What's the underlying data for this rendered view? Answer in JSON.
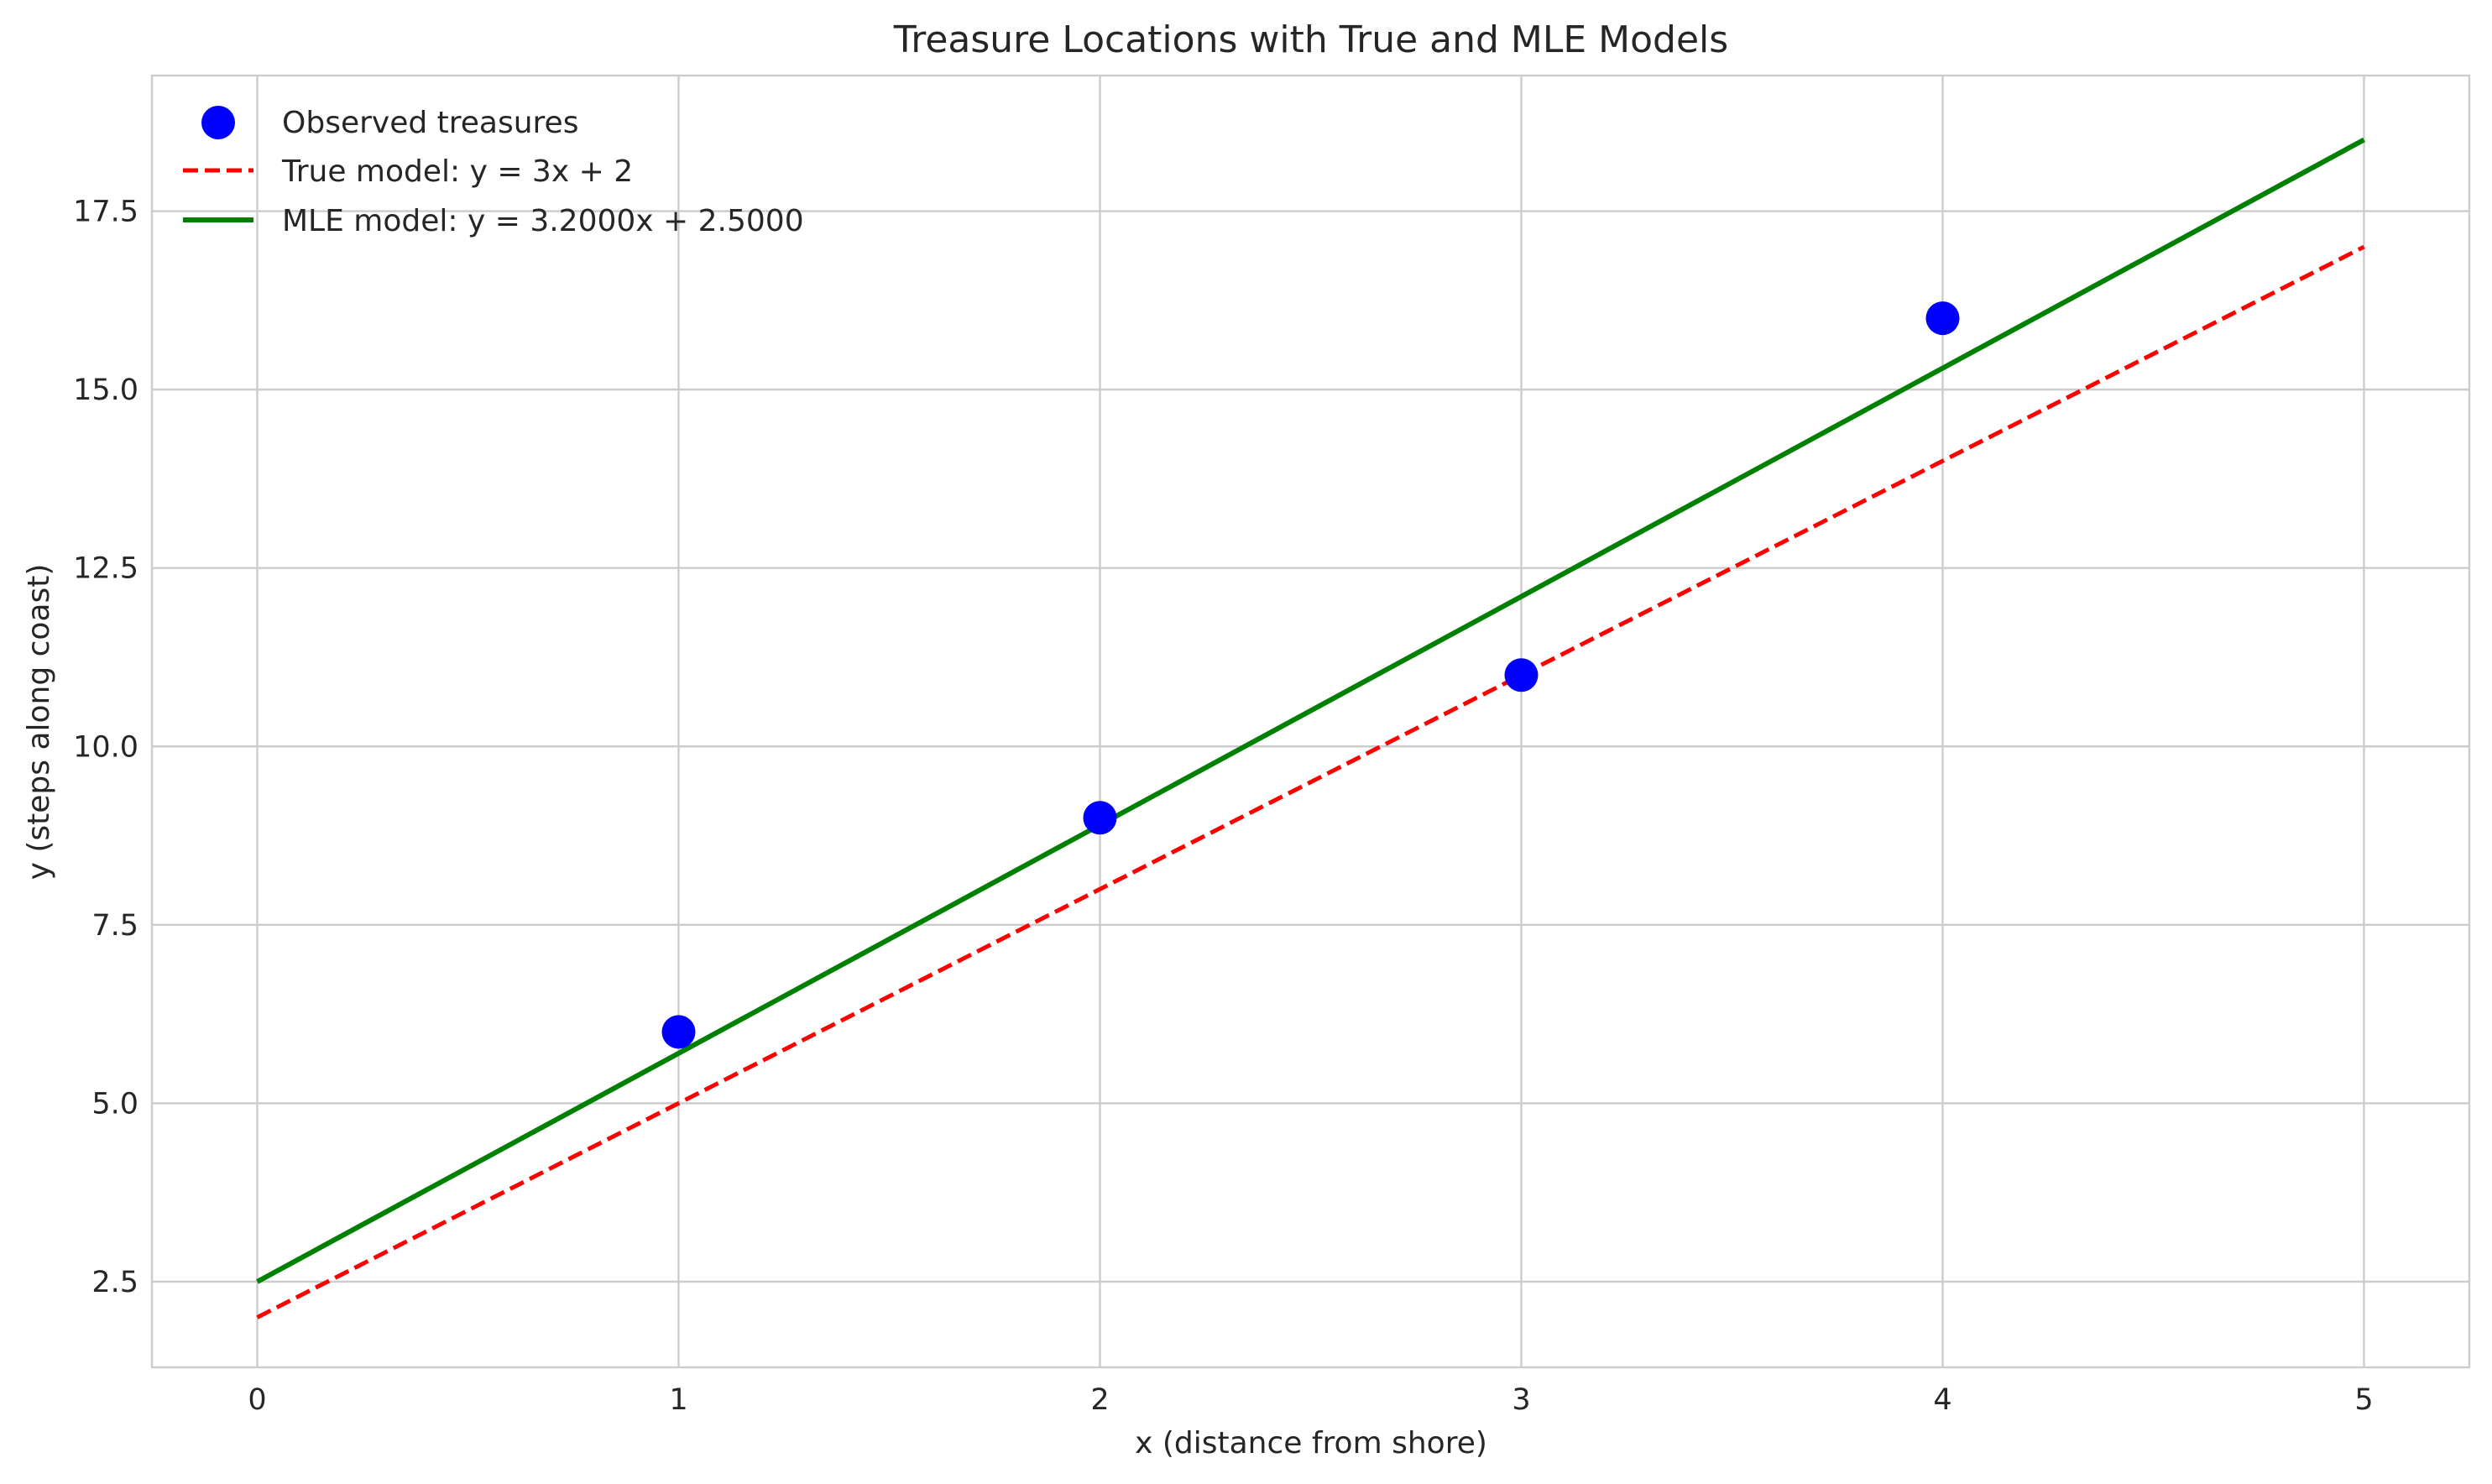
{
  "chart_data": {
    "type": "scatter",
    "title": "Treasure Locations with True and MLE Models",
    "xlabel": "x (distance from shore)",
    "ylabel": "y (steps along coast)",
    "xlim": [
      -0.25,
      5.25
    ],
    "ylim": [
      1.3,
      19.4
    ],
    "xticks": [
      0,
      1,
      2,
      3,
      4,
      5
    ],
    "xtick_labels": [
      "0",
      "1",
      "2",
      "3",
      "4",
      "5"
    ],
    "yticks": [
      2.5,
      5.0,
      7.5,
      10.0,
      12.5,
      15.0,
      17.5
    ],
    "ytick_labels": [
      "2.5",
      "5.0",
      "7.5",
      "10.0",
      "12.5",
      "15.0",
      "17.5"
    ],
    "grid": true,
    "legend_position": "top-left",
    "series": [
      {
        "name": "Observed treasures",
        "kind": "scatter",
        "color": "#0000ff",
        "x": [
          1,
          2,
          3,
          4
        ],
        "y": [
          6,
          9,
          11,
          16
        ]
      },
      {
        "name": "True model: y = 3x + 2",
        "kind": "line",
        "style": "dashed",
        "color": "#ff0000",
        "x": [
          0,
          5
        ],
        "y": [
          2,
          17
        ]
      },
      {
        "name": "MLE model: y = 3.2000x + 2.5000",
        "kind": "line",
        "style": "solid",
        "color": "#008000",
        "x": [
          0,
          5
        ],
        "y": [
          2.5,
          18.5
        ]
      }
    ]
  }
}
